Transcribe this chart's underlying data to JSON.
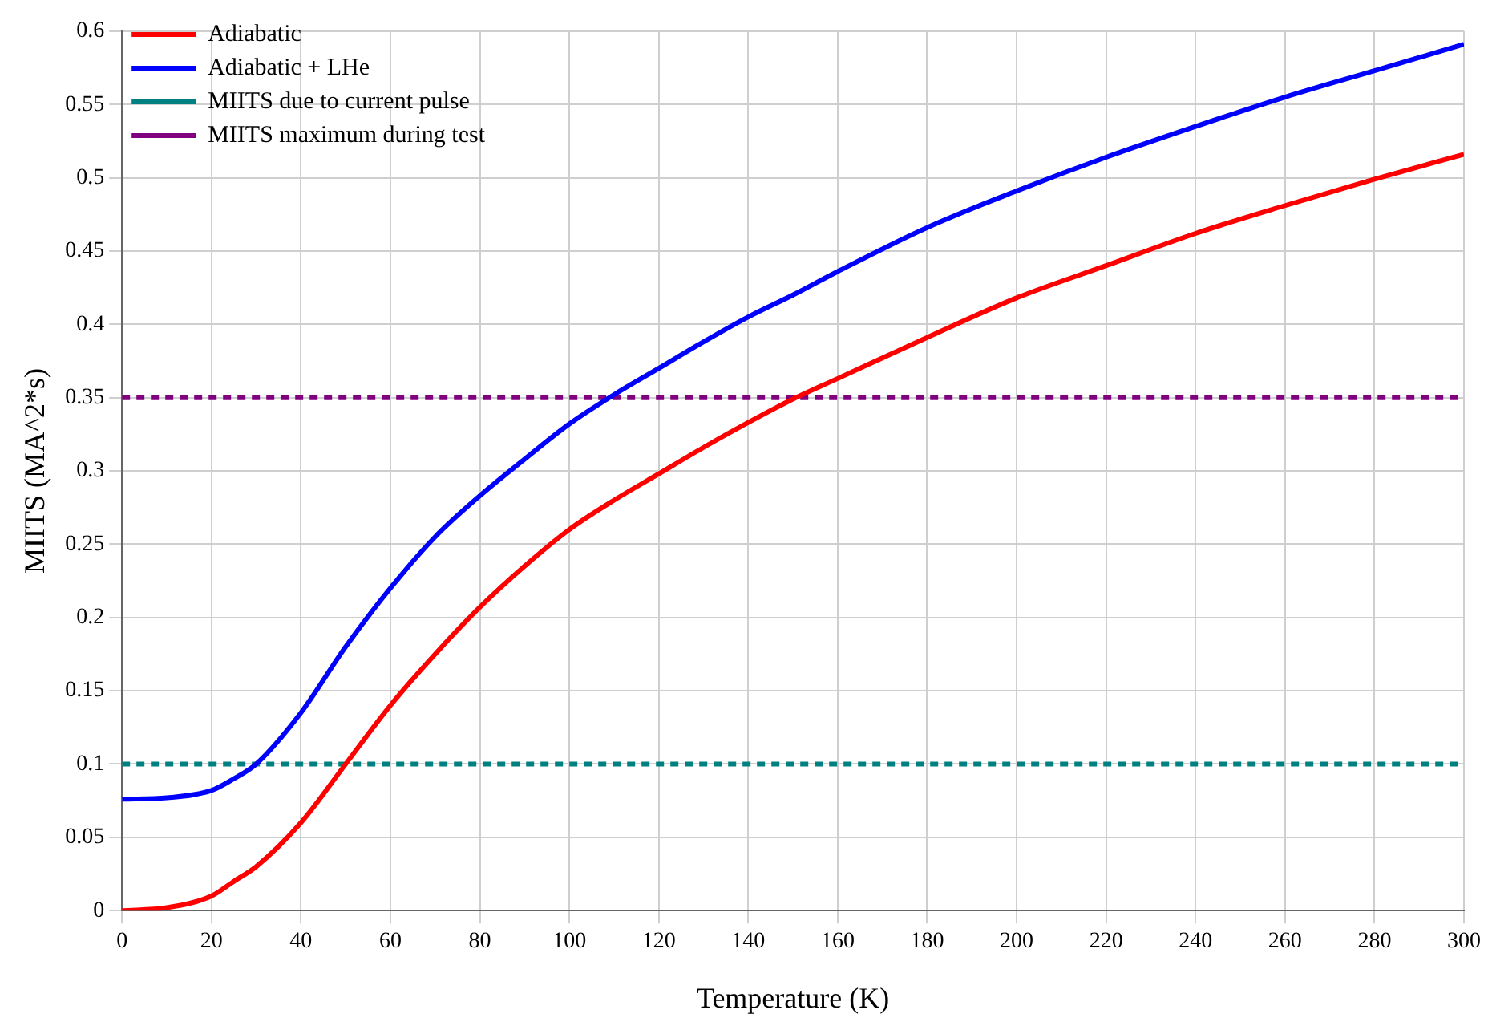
{
  "chart_data": {
    "type": "line",
    "xlabel": "Temperature (K)",
    "ylabel": "MIITS (MA^2*s)",
    "x": [
      0,
      10,
      20,
      25,
      30,
      40,
      50,
      60,
      70,
      80,
      90,
      100,
      110,
      120,
      130,
      140,
      150,
      160,
      180,
      200,
      220,
      240,
      260,
      280,
      300
    ],
    "series": [
      {
        "name": "Adiabatic",
        "color": "#ff0000",
        "values": [
          0,
          0.002,
          0.01,
          0.02,
          0.03,
          0.06,
          0.1,
          0.14,
          0.175,
          0.207,
          0.235,
          0.26,
          0.28,
          0.298,
          0.316,
          0.333,
          0.349,
          0.363,
          0.391,
          0.418,
          0.44,
          0.462,
          0.481,
          0.499,
          0.516
        ]
      },
      {
        "name": "Adiabatic + LHe",
        "color": "#0000ff",
        "values": [
          0.076,
          0.077,
          0.082,
          0.09,
          0.1,
          0.135,
          0.18,
          0.22,
          0.255,
          0.283,
          0.308,
          0.332,
          0.352,
          0.37,
          0.388,
          0.405,
          0.42,
          0.436,
          0.466,
          0.491,
          0.514,
          0.535,
          0.555,
          0.573,
          0.591
        ]
      }
    ],
    "ref_lines": [
      {
        "axis": "y",
        "value": 0.1,
        "label": "MIITS due to current pulse",
        "color": "#008080",
        "line_style": "dotted"
      },
      {
        "axis": "y",
        "value": 0.35,
        "label": "MIITS maximum during test",
        "color": "#800080",
        "line_style": "dotted"
      }
    ],
    "xlim": [
      0,
      300
    ],
    "xticks": [
      0,
      20,
      40,
      60,
      80,
      100,
      120,
      140,
      160,
      180,
      200,
      220,
      240,
      260,
      280,
      300
    ],
    "ylim": [
      0,
      0.6
    ],
    "yticks": [
      0,
      0.05,
      0.1,
      0.15,
      0.2,
      0.25,
      0.3,
      0.35,
      0.4,
      0.45,
      0.5,
      0.55,
      0.6
    ],
    "grid": true,
    "legend": "top left",
    "marker": "none",
    "line_style": "solid"
  }
}
